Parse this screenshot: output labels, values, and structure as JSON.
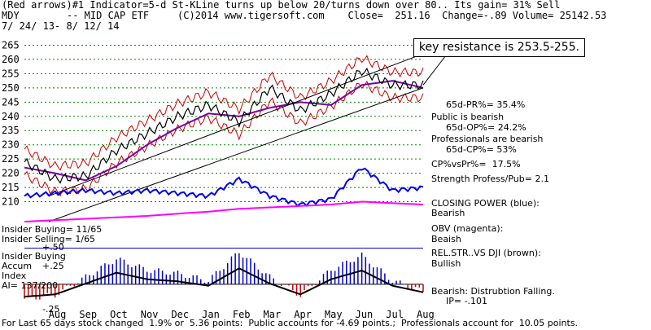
{
  "header": {
    "line1": "(Red arrows)#1 Indicator=5-d St-KLine turns up below 20/turns down over 80.. Its gain= 31% Sell",
    "line2_symbol": "MDY",
    "line2_name": "-- MID CAP ETF",
    "line2_stats": "(C)2014 www.tigersoft.com    Close=  251.16  Change=-.89 Volume= 25142.53",
    "line3": "7/ 24/ 13- 8/ 12/ 14"
  },
  "callout": "key resistance is 253.5-255.",
  "right_panel": {
    "pr": "65d-PR%= 35.4%",
    "public": "Public is bearish",
    "op": "65d-OP%= 24.2%",
    "pros": "Professionals are bearish",
    "cp": "65d-CP%= 53%",
    "cpvspr": "CP%vsPr%=  17.5%",
    "strength": "Strength Profess/Pub= 2.1",
    "closing_power": "CLOSING POWER (blue):",
    "closing_power_state": "Bearish",
    "obv": "OBV (magenta):",
    "obv_state": "Beaish",
    "relstr": "REL.STR..VS DJI (brown):",
    "relstr_state": "Bullish",
    "accum": "Bearish: Distrubtion Falling.",
    "ip": "IP= -.101"
  },
  "left_labels": {
    "insider_buying_count": "Insider Buying= 11/65",
    "insider_selling": "Insider Selling= 1/65",
    "insider_buying": "Insider Buying",
    "accum": "Accum",
    "index": "Index",
    "ai": "AI= 137/200",
    "plus50": "+.50",
    "plus25": "+.25",
    "minus25": "-.25"
  },
  "footer": "For Last 65 days stock changed  1.9% or  5.36 points:  Public accounts for -4.69 points.;  Professionals account for  10.05 points.",
  "colors": {
    "price": "#000000",
    "trend": "#000000",
    "band": "#cc0000",
    "ma": "#7700aa",
    "closing_power": "#0000ee",
    "obv": "#ff00ff",
    "relstr": "#cc6666",
    "grid": "#008800",
    "buy": "#2244ff",
    "sell": "#ee1111",
    "accum_pos": "#0000cc",
    "accum_neg": "#cc0000"
  },
  "chart_data": {
    "type": "line",
    "title": "MDY -- MID CAP ETF",
    "x": [
      "Jul",
      "Aug",
      "Sep",
      "Oct",
      "Nov",
      "Dec",
      "Jan",
      "Feb",
      "Mar",
      "Apr",
      "May",
      "Jun",
      "Jul",
      "Aug"
    ],
    "x_tick_labels": [
      "Aug",
      "Sep",
      "Oct",
      "Nov",
      "Dec",
      "Jan",
      "Feb",
      "Mar",
      "Apr",
      "May",
      "Jun",
      "Jul",
      "Aug"
    ],
    "y_ticks": [
      210,
      215,
      220,
      225,
      230,
      235,
      240,
      245,
      250,
      255,
      260,
      265
    ],
    "ylim": [
      205,
      268
    ],
    "grid": true,
    "series": [
      {
        "name": "Close",
        "values": [
          224,
          218,
          219,
          228,
          234,
          240,
          244,
          238,
          250,
          242,
          248,
          256,
          251,
          251
        ]
      },
      {
        "name": "CLOSING POWER (blue)",
        "values": [
          212,
          213,
          214,
          213,
          214,
          213,
          212,
          218,
          212,
          209,
          211,
          222,
          214,
          215
        ]
      },
      {
        "name": "OBV (magenta)",
        "values": [
          203,
          203.5,
          204,
          204.5,
          205,
          205.8,
          206.5,
          207.5,
          208,
          208.5,
          209,
          210,
          209.5,
          209
        ]
      }
    ],
    "accum_index": [
      -0.2,
      -0.15,
      0.1,
      0.35,
      0.2,
      0.15,
      0.05,
      0.45,
      0.1,
      -0.15,
      0.2,
      0.4,
      0.05,
      -0.1
    ],
    "ai_ylim": [
      -0.35,
      0.55
    ],
    "ai_ticks": [
      0.5,
      0.25,
      -0.25
    ]
  }
}
